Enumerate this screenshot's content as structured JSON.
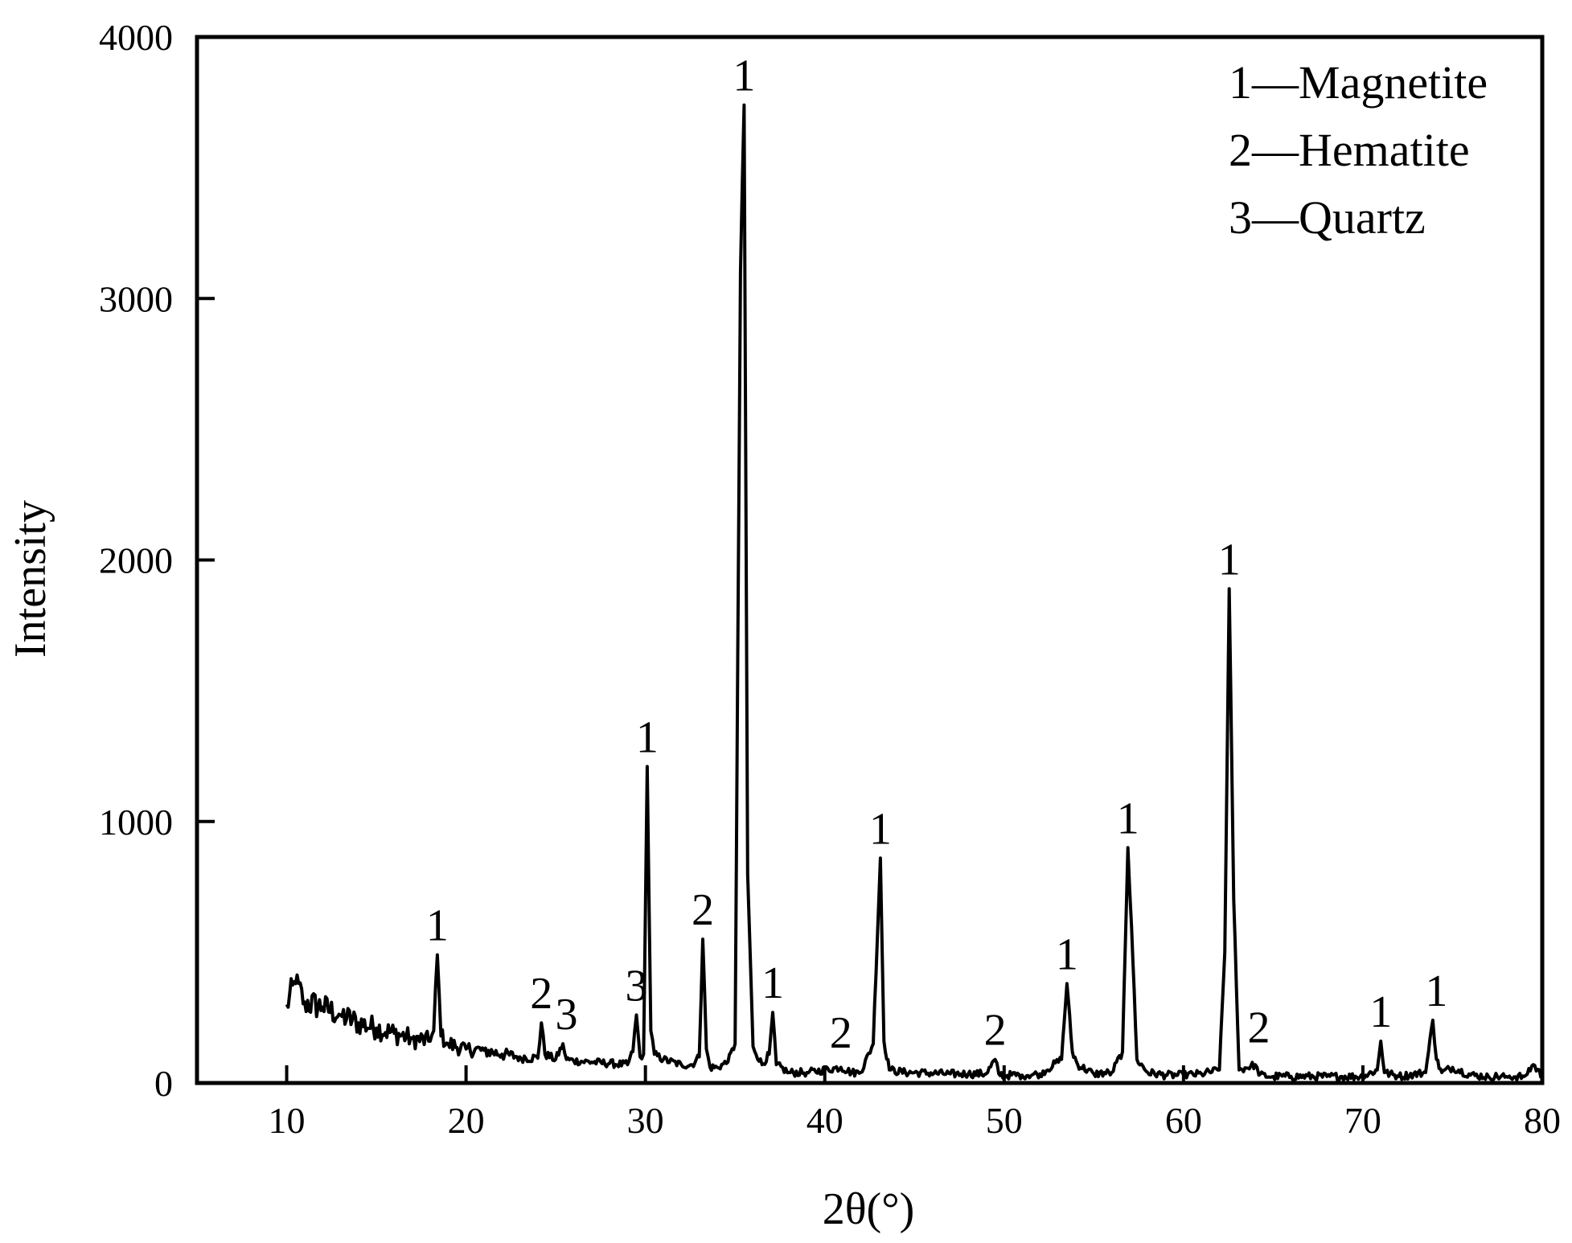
{
  "chart_data": {
    "type": "line",
    "xlabel": "2θ(°)",
    "ylabel": "Intensity",
    "xlim": [
      5,
      80
    ],
    "ylim": [
      0,
      4000
    ],
    "xticks": [
      10,
      20,
      30,
      40,
      50,
      60,
      70,
      80
    ],
    "yticks": [
      0,
      1000,
      2000,
      3000,
      4000
    ],
    "grid": false,
    "legend": {
      "position": "top-right",
      "entries": [
        "1—Magnetite",
        "2—Hematite",
        "3—Quartz"
      ]
    },
    "series": [
      {
        "x": [
          10,
          10.5,
          11,
          12,
          13,
          14,
          15,
          16,
          17,
          18,
          18.2,
          18.4,
          18.6,
          19,
          20,
          21,
          22,
          23,
          24,
          24.2,
          24.4,
          25,
          25.4,
          25.6,
          26,
          27,
          28,
          29,
          29.3,
          29.5,
          29.7,
          29.9,
          30.1,
          30.3,
          30.5,
          31,
          32,
          32.6,
          33,
          33.2,
          33.4,
          33.6,
          34,
          34.6,
          35,
          35.3,
          35.5,
          35.7,
          36,
          36.5,
          36.9,
          37.1,
          37.3,
          38,
          39,
          40,
          40.9,
          41.5,
          42,
          42.7,
          43.1,
          43.3,
          43.6,
          44.5,
          45,
          47,
          48,
          49,
          49.5,
          49.7,
          50,
          51,
          52,
          53.2,
          53.5,
          53.8,
          54.1,
          55,
          56,
          56.6,
          56.9,
          57.1,
          57.4,
          58,
          59,
          60,
          61,
          62,
          62.3,
          62.55,
          62.8,
          63.1,
          64,
          64.2,
          65,
          66,
          68,
          70,
          70.8,
          71,
          71.2,
          72,
          73.5,
          73.9,
          74.1,
          74.4,
          75,
          76,
          77,
          78,
          79,
          79.5,
          80
        ],
        "y": [
          300,
          380,
          310,
          290,
          260,
          230,
          210,
          190,
          170,
          160,
          200,
          490,
          180,
          150,
          130,
          125,
          110,
          100,
          95,
          230,
          110,
          90,
          150,
          90,
          85,
          80,
          75,
          70,
          120,
          260,
          100,
          110,
          1210,
          200,
          110,
          90,
          70,
          70,
          100,
          550,
          130,
          60,
          60,
          80,
          150,
          3100,
          3740,
          800,
          140,
          70,
          110,
          270,
          70,
          40,
          40,
          50,
          60,
          40,
          40,
          150,
          860,
          160,
          50,
          40,
          40,
          35,
          35,
          35,
          90,
          35,
          30,
          30,
          35,
          90,
          380,
          120,
          70,
          35,
          40,
          120,
          900,
          600,
          90,
          40,
          30,
          30,
          35,
          50,
          500,
          1890,
          700,
          50,
          70,
          30,
          25,
          25,
          25,
          25,
          50,
          160,
          40,
          25,
          40,
          240,
          90,
          40,
          60,
          30,
          25,
          25,
          25,
          70,
          25
        ]
      }
    ],
    "annotations": [
      {
        "text": "1",
        "x": 35.5,
        "y": 3740
      },
      {
        "text": "1",
        "x": 18.4,
        "y": 490
      },
      {
        "text": "2",
        "x": 24.2,
        "y": 230
      },
      {
        "text": "3",
        "x": 25.6,
        "y": 150
      },
      {
        "text": "3",
        "x": 29.5,
        "y": 260
      },
      {
        "text": "1",
        "x": 30.1,
        "y": 1210
      },
      {
        "text": "2",
        "x": 33.2,
        "y": 550
      },
      {
        "text": "1",
        "x": 37.1,
        "y": 270
      },
      {
        "text": "2",
        "x": 40.9,
        "y": 80
      },
      {
        "text": "1",
        "x": 43.1,
        "y": 860
      },
      {
        "text": "2",
        "x": 49.5,
        "y": 90
      },
      {
        "text": "1",
        "x": 53.5,
        "y": 380
      },
      {
        "text": "1",
        "x": 56.9,
        "y": 900
      },
      {
        "text": "1",
        "x": 62.55,
        "y": 1890
      },
      {
        "text": "2",
        "x": 64.2,
        "y": 100
      },
      {
        "text": "1",
        "x": 71.0,
        "y": 160
      },
      {
        "text": "1",
        "x": 74.1,
        "y": 240
      }
    ]
  }
}
